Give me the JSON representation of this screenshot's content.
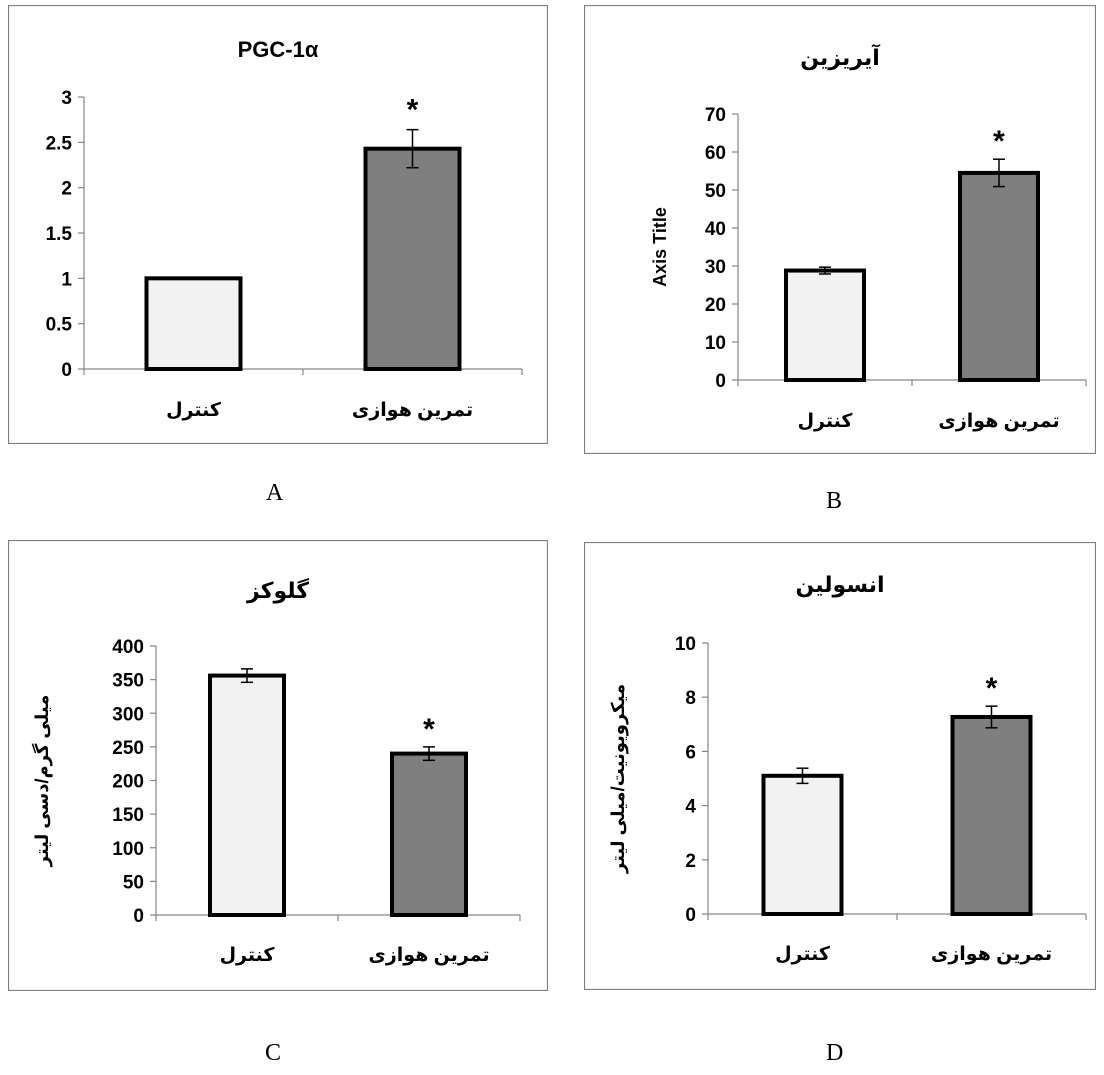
{
  "chart_data": [
    {
      "type": "bar",
      "panel_label": "A",
      "title": "PGC-1α",
      "ylabel": "",
      "categories": [
        "کنترل",
        "تمرین هوازی"
      ],
      "values": [
        1.0,
        2.43
      ],
      "errors": [
        0.0,
        0.21
      ],
      "significance": [
        "",
        "*"
      ],
      "ylim": [
        0,
        3
      ],
      "yticks": [
        0,
        0.5,
        1,
        1.5,
        2,
        2.5,
        3
      ],
      "ytick_labels": [
        "0",
        "0.5",
        "1",
        "1.5",
        "2",
        "2.5",
        "3"
      ],
      "bar_colors": [
        "#f2f2f2",
        "#7f7f7f"
      ],
      "grid": false,
      "legend": "none"
    },
    {
      "type": "bar",
      "panel_label": "B",
      "title": "آیریزین",
      "ylabel": "Axis Title",
      "categories": [
        "کنترل",
        "تمرین هوازی"
      ],
      "values": [
        28.8,
        54.5
      ],
      "errors": [
        0.9,
        3.6
      ],
      "significance": [
        "",
        "*"
      ],
      "ylim": [
        0,
        70
      ],
      "yticks": [
        0,
        10,
        20,
        30,
        40,
        50,
        60,
        70
      ],
      "ytick_labels": [
        "0",
        "10",
        "20",
        "30",
        "40",
        "50",
        "60",
        "70"
      ],
      "bar_colors": [
        "#f2f2f2",
        "#7f7f7f"
      ],
      "grid": false,
      "legend": "none"
    },
    {
      "type": "bar",
      "panel_label": "C",
      "title": "گلوکز",
      "ylabel": "میلی گرم/دسی لیتر",
      "categories": [
        "کنترل",
        "تمرین هوازی"
      ],
      "values": [
        356,
        240
      ],
      "errors": [
        10,
        10
      ],
      "significance": [
        "",
        "*"
      ],
      "ylim": [
        0,
        400
      ],
      "yticks": [
        0,
        50,
        100,
        150,
        200,
        250,
        300,
        350,
        400
      ],
      "ytick_labels": [
        "0",
        "50",
        "100",
        "150",
        "200",
        "250",
        "300",
        "350",
        "400"
      ],
      "bar_colors": [
        "#f2f2f2",
        "#7f7f7f"
      ],
      "grid": false,
      "legend": "none"
    },
    {
      "type": "bar",
      "panel_label": "D",
      "title": "انسولین",
      "ylabel": "میکرویونیت/میلی لیتر",
      "categories": [
        "کنترل",
        "تمرین هوازی"
      ],
      "values": [
        5.1,
        7.27
      ],
      "errors": [
        0.28,
        0.4
      ],
      "significance": [
        "",
        "*"
      ],
      "ylim": [
        0,
        10
      ],
      "yticks": [
        0,
        2,
        4,
        6,
        8,
        10
      ],
      "ytick_labels": [
        "0",
        "2",
        "4",
        "6",
        "8",
        "10"
      ],
      "bar_colors": [
        "#f2f2f2",
        "#7f7f7f"
      ],
      "grid": false,
      "legend": "none"
    }
  ]
}
